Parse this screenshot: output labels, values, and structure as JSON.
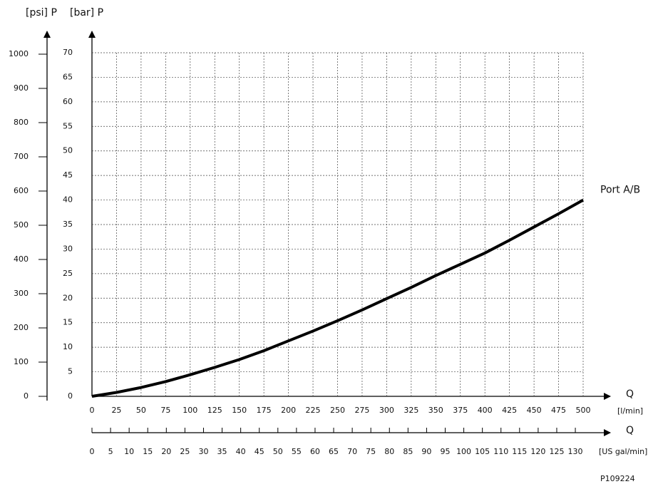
{
  "chart_data": {
    "type": "line",
    "y2_label": "[psi] P",
    "y_label": "[bar] P",
    "x_label": "Q",
    "x_unit": "[l/min]",
    "x2_label": "Q",
    "x2_unit": "[US gal/min]",
    "note": "P109224",
    "x": [
      0,
      25,
      50,
      75,
      100,
      125,
      150,
      175,
      200,
      225,
      250,
      275,
      300,
      325,
      350,
      375,
      400,
      425,
      450,
      475,
      500
    ],
    "series": [
      {
        "name": "Port A/B",
        "color": "#000000",
        "values": [
          0,
          0.8,
          1.8,
          3.0,
          4.4,
          5.9,
          7.5,
          9.3,
          11.3,
          13.3,
          15.4,
          17.6,
          19.9,
          22.2,
          24.6,
          26.9,
          29.2,
          31.8,
          34.5,
          37.2,
          40
        ]
      }
    ],
    "xlim": [
      0,
      500
    ],
    "xticks": [
      0,
      25,
      50,
      75,
      100,
      125,
      150,
      175,
      200,
      225,
      250,
      275,
      300,
      325,
      350,
      375,
      400,
      425,
      450,
      475,
      500
    ],
    "ylim": [
      0,
      70
    ],
    "yticks": [
      0,
      5,
      10,
      15,
      20,
      25,
      30,
      35,
      40,
      45,
      50,
      55,
      60,
      65,
      70
    ],
    "y2lim": [
      0,
      1000
    ],
    "y2ticks": [
      0,
      100,
      200,
      300,
      400,
      500,
      600,
      700,
      800,
      900,
      1000
    ],
    "x2lim": [
      0,
      132.1
    ],
    "x2ticks": [
      0,
      5,
      10,
      15,
      20,
      25,
      30,
      35,
      40,
      45,
      50,
      55,
      60,
      65,
      70,
      75,
      80,
      85,
      90,
      95,
      100,
      105,
      110,
      115,
      120,
      125,
      130
    ],
    "grid": true
  }
}
